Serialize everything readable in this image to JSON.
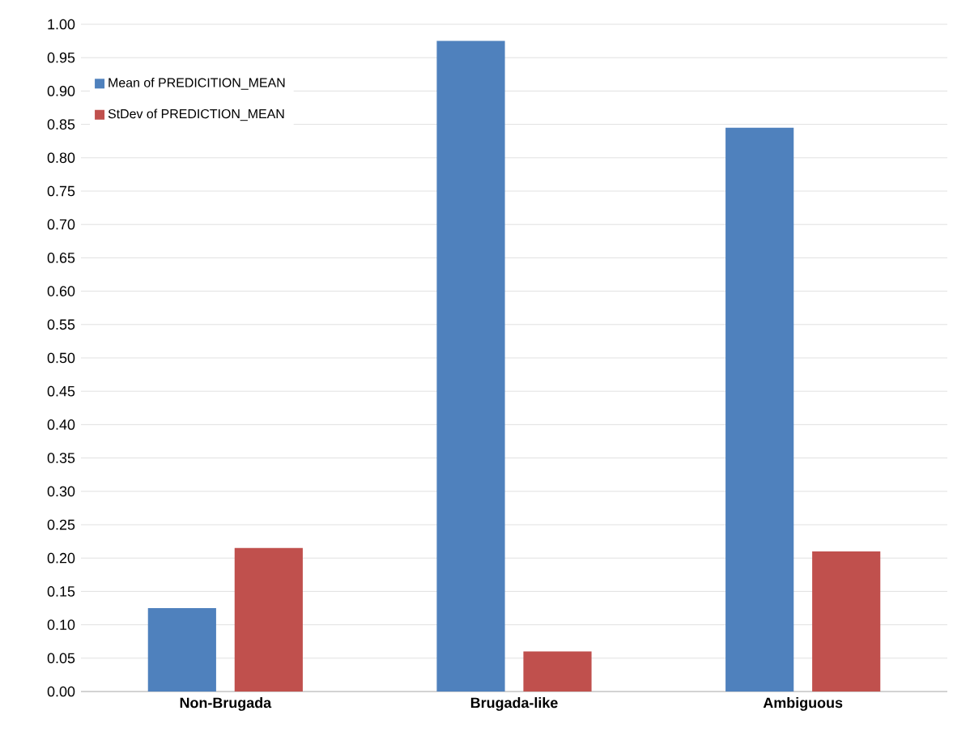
{
  "chart_data": {
    "type": "bar",
    "categories": [
      "Non-Brugada",
      "Brugada-like",
      "Ambiguous"
    ],
    "series": [
      {
        "name": "Mean of PREDICITION_MEAN",
        "color": "#4f81bd",
        "values": [
          0.125,
          0.975,
          0.845
        ]
      },
      {
        "name": "StDev of PREDICTION_MEAN",
        "color": "#c0504d",
        "values": [
          0.215,
          0.06,
          0.21
        ]
      }
    ],
    "ylim": [
      0,
      1
    ],
    "yticks": [
      {
        "value": 0,
        "label": "0.00"
      },
      {
        "value": 0.05,
        "label": "0.05"
      },
      {
        "value": 0.1,
        "label": "0.10"
      },
      {
        "value": 0.15,
        "label": "0.15"
      },
      {
        "value": 0.2,
        "label": "0.20"
      },
      {
        "value": 0.25,
        "label": "0.25"
      },
      {
        "value": 0.3,
        "label": "0.30"
      },
      {
        "value": 0.35,
        "label": "0.35"
      },
      {
        "value": 0.4,
        "label": "0.40"
      },
      {
        "value": 0.45,
        "label": "0.45"
      },
      {
        "value": 0.5,
        "label": "0.50"
      },
      {
        "value": 0.55,
        "label": "0.55"
      },
      {
        "value": 0.6,
        "label": "0.60"
      },
      {
        "value": 0.65,
        "label": "0.65"
      },
      {
        "value": 0.7,
        "label": "0.70"
      },
      {
        "value": 0.75,
        "label": "0.75"
      },
      {
        "value": 0.8,
        "label": "0.80"
      },
      {
        "value": 0.85,
        "label": "0.85"
      },
      {
        "value": 0.9,
        "label": "0.90"
      },
      {
        "value": 0.95,
        "label": "0.95"
      },
      {
        "value": 1,
        "label": "1.00"
      }
    ],
    "grid": "y",
    "legend": "top left"
  }
}
